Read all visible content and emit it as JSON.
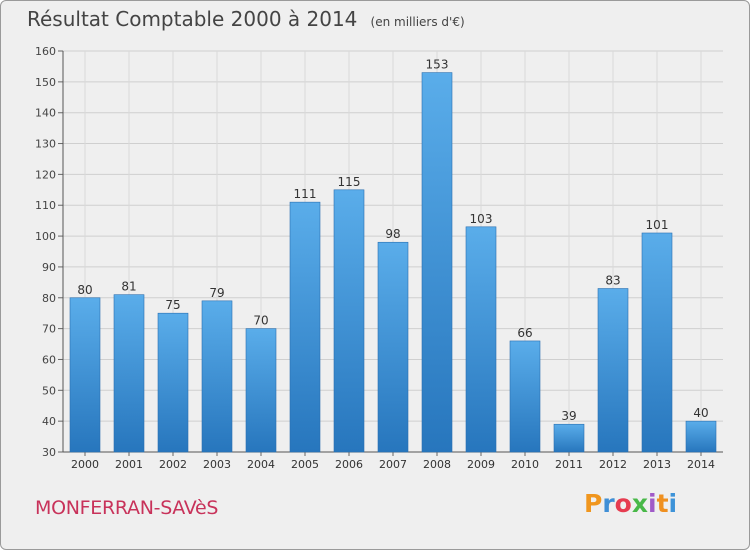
{
  "chart_data": {
    "type": "bar",
    "title": "Résultat Comptable 2000 à 2014",
    "subtitle": "(en milliers d'€)",
    "xlabel": "",
    "ylabel": "",
    "categories": [
      "2000",
      "2001",
      "2002",
      "2003",
      "2004",
      "2005",
      "2006",
      "2007",
      "2008",
      "2009",
      "2010",
      "2011",
      "2012",
      "2013",
      "2014"
    ],
    "values": [
      80,
      81,
      75,
      79,
      70,
      111,
      115,
      98,
      153,
      103,
      66,
      39,
      83,
      101,
      40
    ],
    "ylim": [
      30,
      160
    ],
    "yticks": [
      30,
      40,
      50,
      60,
      70,
      80,
      90,
      100,
      110,
      120,
      130,
      140,
      150,
      160
    ],
    "grid": true,
    "bar_color": "#3e93d8"
  },
  "footer": {
    "city": "MONFERRAN-SAVèS",
    "brand": "Proxiti",
    "brand_colors": [
      "#f0961e",
      "#3f8fd6",
      "#e63c50",
      "#48b848",
      "#a05ac8",
      "#ef9020",
      "#3e93d8"
    ]
  }
}
